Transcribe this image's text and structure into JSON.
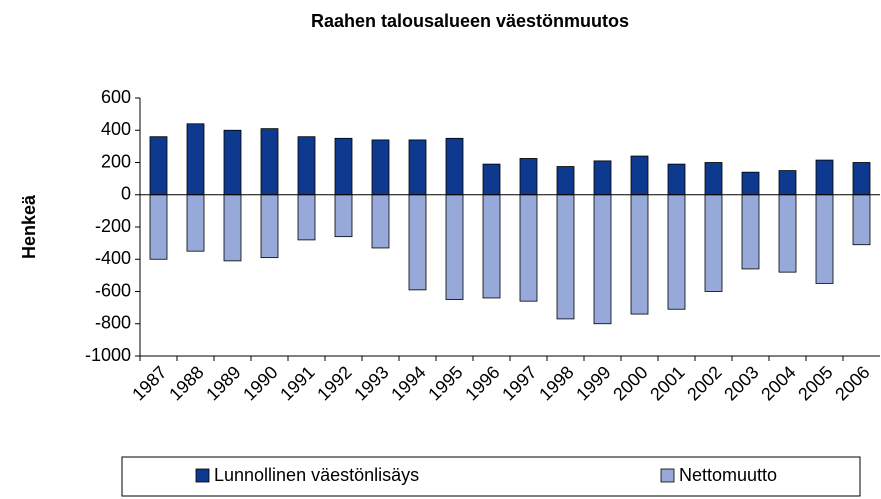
{
  "chart_data": {
    "type": "bar",
    "stacked": true,
    "title": "Raahen talousalueen väestönmuutos",
    "ylabel": "Henkeä",
    "categories": [
      "1987",
      "1988",
      "1989",
      "1990",
      "1991",
      "1992",
      "1993",
      "1994",
      "1995",
      "1996",
      "1997",
      "1998",
      "1999",
      "2000",
      "2001",
      "2002",
      "2003",
      "2004",
      "2005",
      "2006"
    ],
    "series": [
      {
        "name": "Lunnollinen väestönlisäys",
        "color": "#0d3a8e",
        "values": [
          360,
          440,
          400,
          410,
          360,
          350,
          340,
          340,
          350,
          190,
          225,
          175,
          210,
          240,
          190,
          200,
          140,
          150,
          215,
          200
        ]
      },
      {
        "name": "Nettomuutto",
        "color": "#96a9d9",
        "values": [
          -400,
          -350,
          -410,
          -390,
          -280,
          -260,
          -330,
          -590,
          -650,
          -640,
          -660,
          -770,
          -800,
          -740,
          -710,
          -600,
          -460,
          -480,
          -550,
          -310
        ]
      }
    ],
    "ylim": [
      -1000,
      600
    ],
    "yticks": [
      -1000,
      -800,
      -600,
      -400,
      -200,
      0,
      200,
      400,
      600
    ],
    "grid": false,
    "legend": "bottom"
  }
}
